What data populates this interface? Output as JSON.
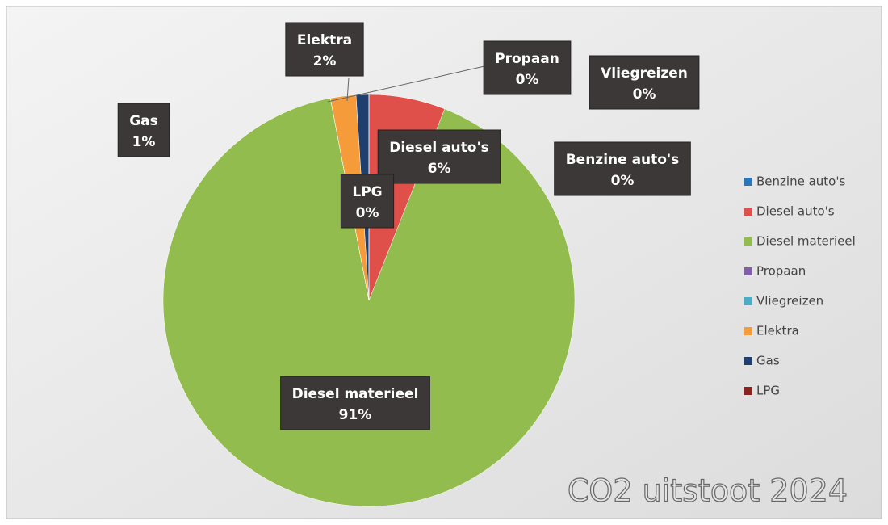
{
  "chart_data": {
    "type": "pie",
    "title": "CO2 uitstoot 2024",
    "categories": [
      "Benzine auto's",
      "Diesel auto's",
      "Diesel materieel",
      "Propaan",
      "Vliegreizen",
      "Elektra",
      "Gas",
      "LPG"
    ],
    "values": [
      0,
      6,
      91,
      0,
      0,
      2,
      1,
      0
    ],
    "value_labels": [
      "0%",
      "6%",
      "91%",
      "0%",
      "0%",
      "2%",
      "1%",
      "0%"
    ],
    "colors": [
      "#2e75b6",
      "#e0504a",
      "#92bd4e",
      "#7f5fa8",
      "#4bacc6",
      "#f59b3a",
      "#1f3f6e",
      "#8b2323"
    ],
    "legend": "right"
  }
}
